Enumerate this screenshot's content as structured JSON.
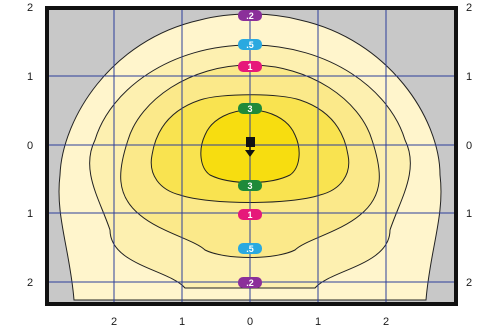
{
  "chart_data": {
    "type": "isolux",
    "x_ticks": [
      "2",
      "1",
      "0",
      "1",
      "2"
    ],
    "y_ticks": [
      "2",
      "1",
      "0",
      "1",
      "2"
    ],
    "contours": [
      {
        "level": ".2",
        "color": "#fff5cc",
        "label_color": "#8b2f9a"
      },
      {
        "level": ".5",
        "color": "#fdf0b0",
        "label_color": "#2aa9e0"
      },
      {
        "level": "1",
        "color": "#fbe98a",
        "label_color": "#e6197a"
      },
      {
        "level": "3",
        "color": "#f9e350",
        "label_color": "#1e8a3a"
      },
      {
        "level": "",
        "color": "#f7dd10",
        "label_color": ""
      }
    ],
    "background_color": "#c8c8c8",
    "grid_color": "#2c3e9a",
    "frame_color": "#111111",
    "luminaire_marker": "square-with-arrow-down"
  }
}
